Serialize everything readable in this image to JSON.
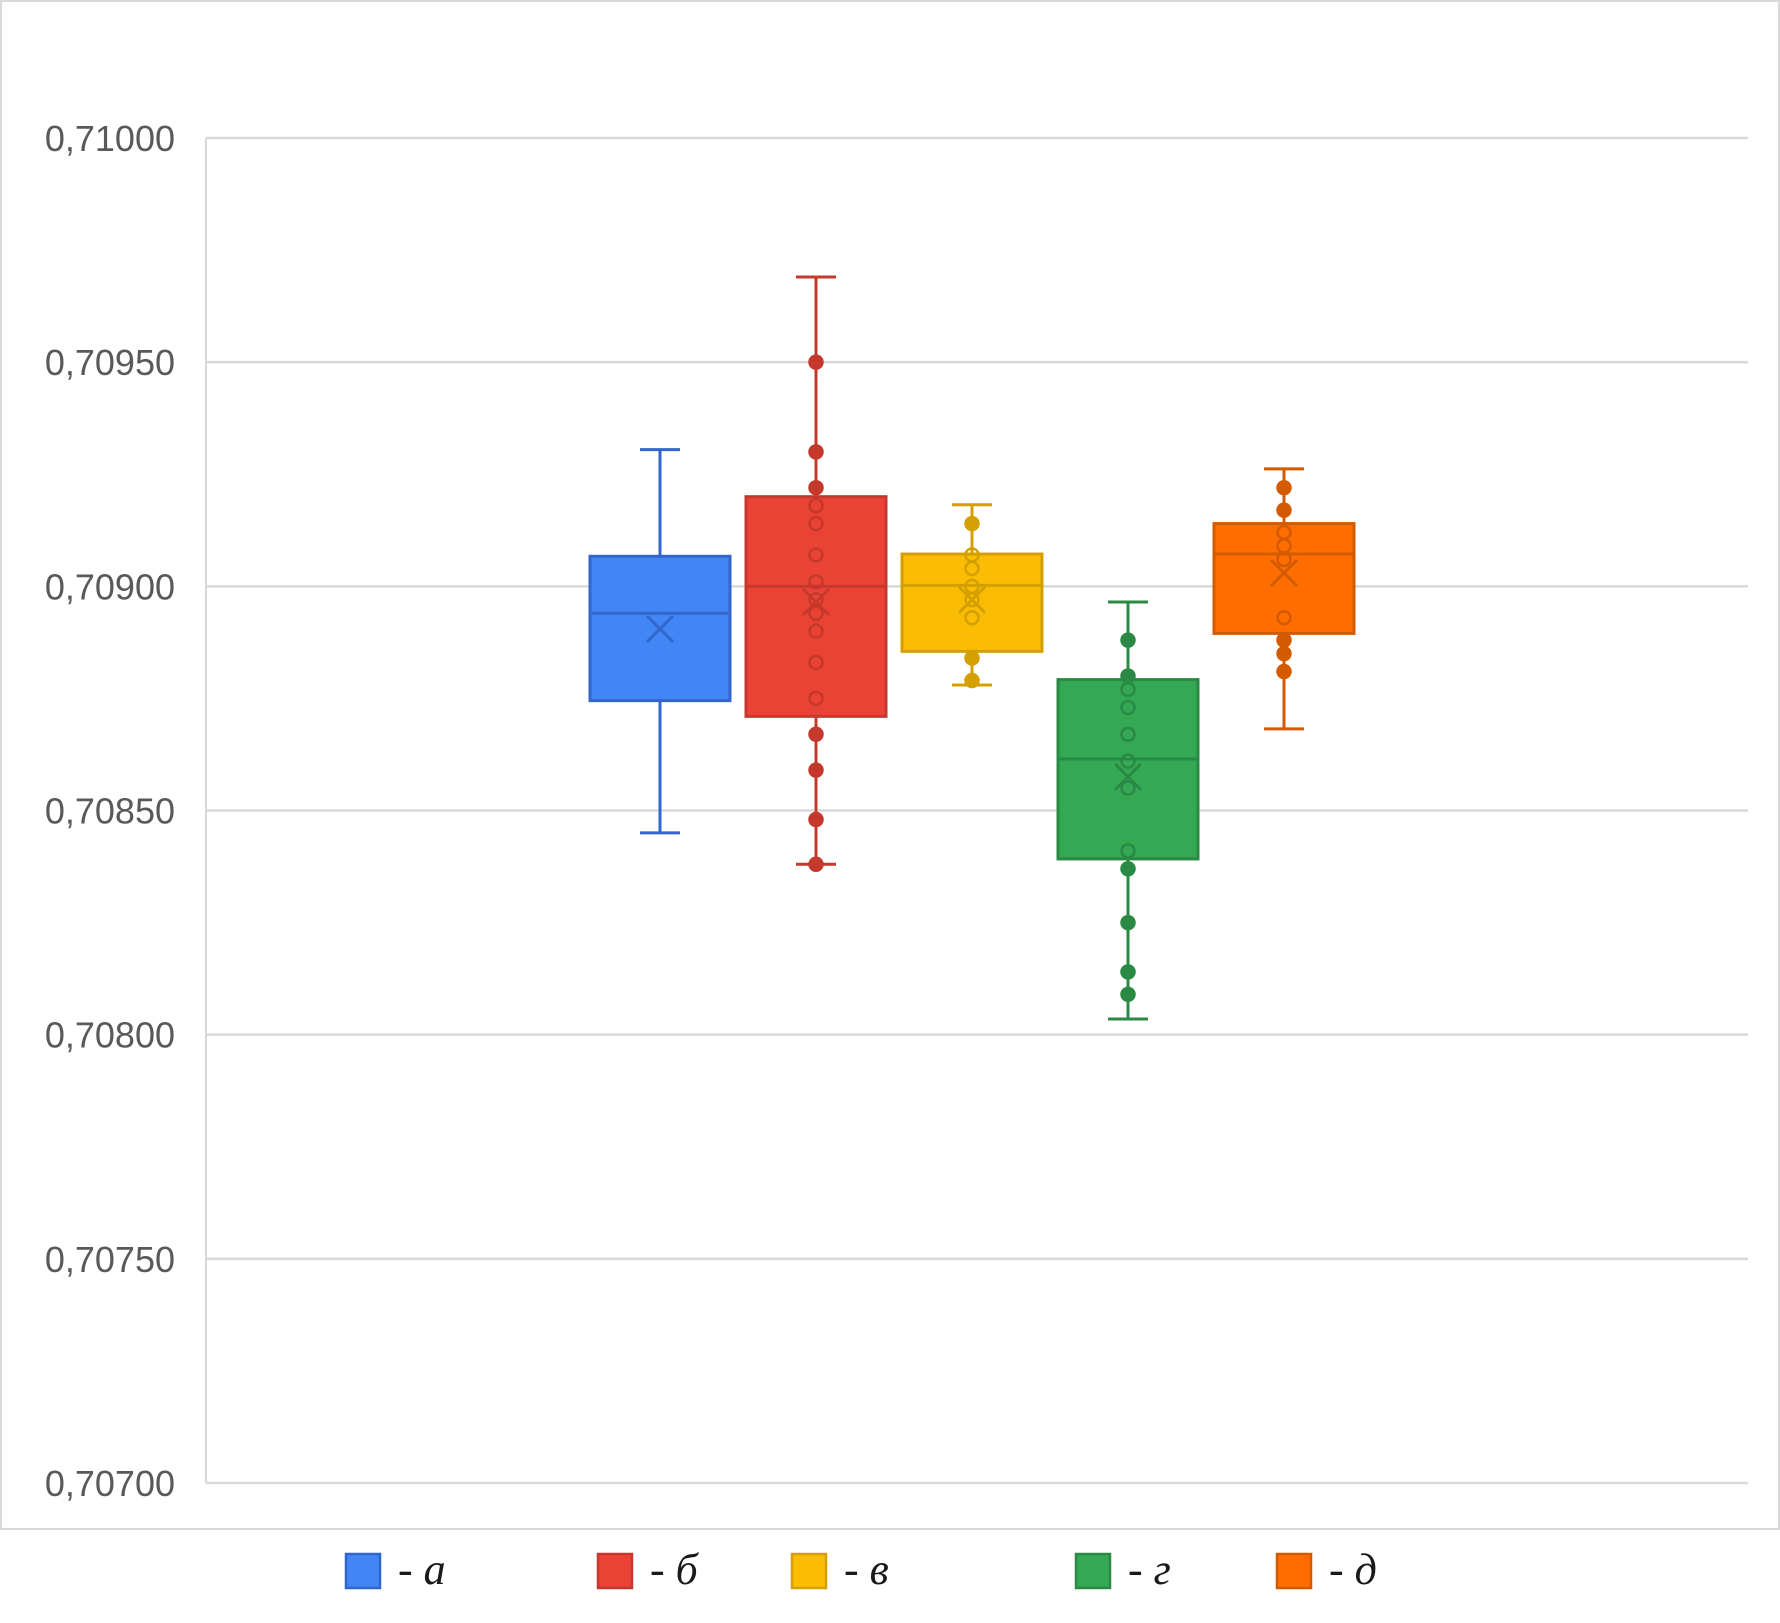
{
  "chart_data": {
    "type": "box",
    "ylim": [
      0.707,
      0.71
    ],
    "y_ticks": [
      "0,70700",
      "0,70750",
      "0,70800",
      "0,70850",
      "0,70900",
      "0,70950",
      "0,71000"
    ],
    "y_tick_values": [
      0.707,
      0.7075,
      0.708,
      0.7085,
      0.709,
      0.7095,
      0.71
    ],
    "grid": true,
    "legend_position": "bottom",
    "series": [
      {
        "name": "- а",
        "color": "#4285f4",
        "stroke": "#3366cc",
        "min": 0.70845,
        "q1": 0.708745,
        "median": 0.70894,
        "q3": 0.709067,
        "max": 0.709305,
        "mean": 0.708905,
        "points": []
      },
      {
        "name": "- б",
        "color": "#ea4335",
        "stroke": "#c5392d",
        "min": 0.70838,
        "q1": 0.70871,
        "median": 0.709,
        "q3": 0.7092,
        "max": 0.70969,
        "mean": 0.708965,
        "points": [
          0.70838,
          0.70848,
          0.70859,
          0.70867,
          0.70875,
          0.70883,
          0.7089,
          0.70894,
          0.70897,
          0.70901,
          0.70907,
          0.70914,
          0.70918,
          0.70922,
          0.7093,
          0.7095
        ]
      },
      {
        "name": "- в",
        "color": "#fbbc04",
        "stroke": "#d4a000",
        "min": 0.70878,
        "q1": 0.708855,
        "median": 0.709002,
        "q3": 0.709072,
        "max": 0.709182,
        "mean": 0.70897,
        "points": [
          0.70879,
          0.70884,
          0.70893,
          0.70897,
          0.709,
          0.70904,
          0.70907,
          0.70914
        ]
      },
      {
        "name": "- г",
        "color": "#34a853",
        "stroke": "#2a8a45",
        "min": 0.708035,
        "q1": 0.708392,
        "median": 0.708615,
        "q3": 0.708792,
        "max": 0.708965,
        "mean": 0.708575,
        "points": [
          0.70809,
          0.70814,
          0.70825,
          0.70837,
          0.70841,
          0.70855,
          0.70861,
          0.70867,
          0.70873,
          0.70877,
          0.7088,
          0.70888
        ]
      },
      {
        "name": "- д",
        "color": "#ff6d01",
        "stroke": "#d45a00",
        "min": 0.708682,
        "q1": 0.708895,
        "median": 0.709072,
        "q3": 0.70914,
        "max": 0.709262,
        "mean": 0.70903,
        "points": [
          0.70881,
          0.70885,
          0.70888,
          0.70893,
          0.70906,
          0.70909,
          0.70912,
          0.70917,
          0.70922
        ]
      }
    ]
  }
}
